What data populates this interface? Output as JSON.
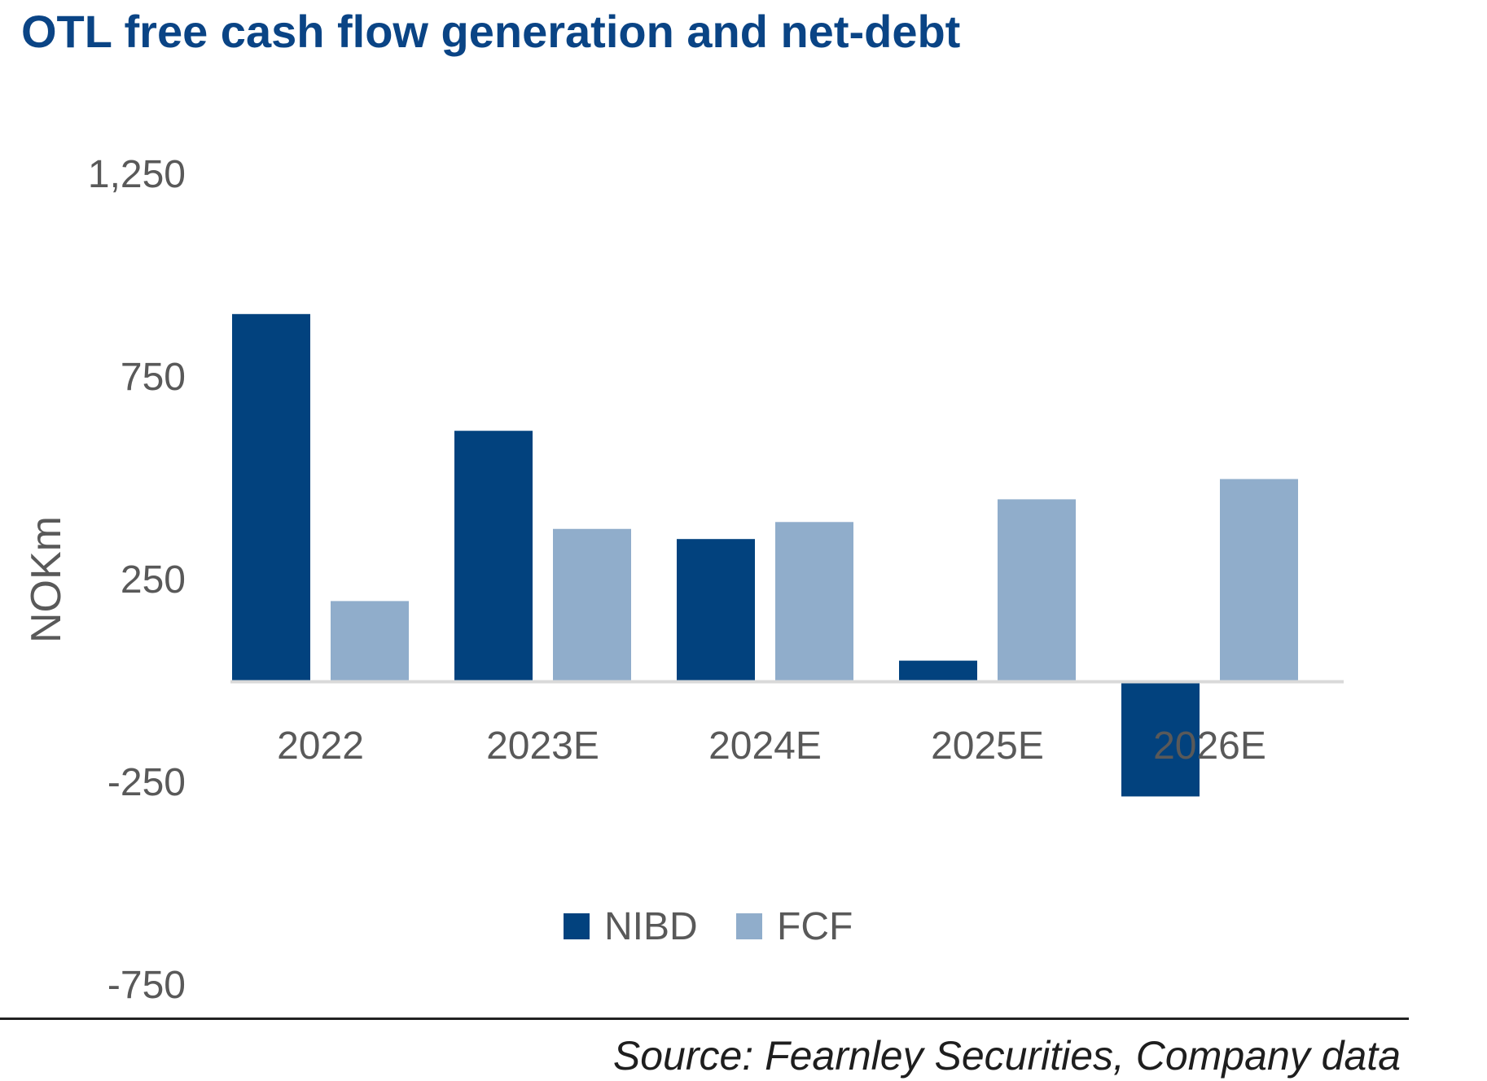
{
  "colors": {
    "title": "#0a4485",
    "nibd": "#02427e",
    "fcf": "#90adcb",
    "axis_text": "#595959",
    "baseline": "#d9d9d9"
  },
  "chart_data": {
    "type": "bar",
    "title": "OTL free cash flow generation and net-debt",
    "xlabel": "",
    "ylabel": "NOKm",
    "ylim": [
      -750,
      1250
    ],
    "yticks": [
      1250,
      750,
      250,
      -250,
      -750
    ],
    "ytick_labels": [
      "1,250",
      "750",
      "250",
      "-250",
      "-750"
    ],
    "grid": false,
    "legend_position": "bottom-center",
    "categories": [
      "2022",
      "2023E",
      "2024E",
      "2025E",
      "2026E"
    ],
    "series": [
      {
        "name": "NIBD",
        "values": [
          905,
          617,
          350,
          50,
          -285
        ]
      },
      {
        "name": "FCF",
        "values": [
          197,
          375,
          392,
          448,
          498
        ]
      }
    ]
  },
  "footer": {
    "source": "Source: Fearnley Securities, Company data"
  }
}
